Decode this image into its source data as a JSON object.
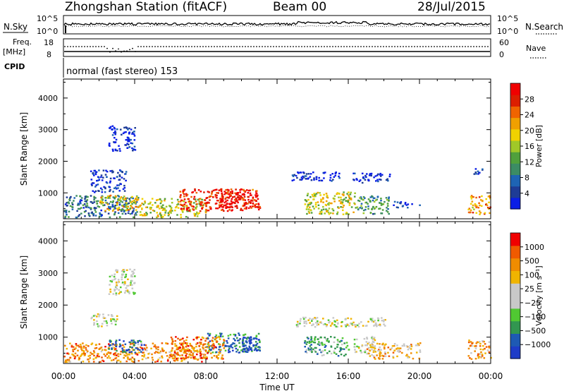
{
  "header": {
    "station": "Zhongshan Station (fitACF)",
    "beam": "Beam 00",
    "date": "28/Jul/2015"
  },
  "top_panels": {
    "nsky_label": "N.Sky",
    "nsearch_label": "N.Search",
    "nsky_ticks": [
      "10^5",
      "10^0"
    ],
    "nsearch_ticks": [
      "10^5",
      "10^0"
    ],
    "freq_label_1": "Freq.",
    "freq_label_2": "[MHz]",
    "freq_ticks": [
      "18",
      "8"
    ],
    "nave_label": "Nave",
    "nave_ticks": [
      "60",
      "0"
    ],
    "cpid_label": "CPID",
    "mode_text": "normal (fast stereo) 153"
  },
  "chart_data": [
    {
      "type": "heatmap",
      "name": "power",
      "ylabel": "Slant Range [km]",
      "yticks": [
        1000,
        2000,
        3000,
        4000
      ],
      "ylim": [
        180,
        4600
      ],
      "xlim": [
        0,
        24
      ],
      "colorbar_label": "Power [dB]",
      "colorbar_ticks": [
        "28",
        "24",
        "20",
        "16",
        "12",
        "8",
        "4"
      ],
      "colorbar_colors": [
        "#0a1ee6",
        "#1e3c96",
        "#1e64b4",
        "#3c8c64",
        "#50a03c",
        "#a0c828",
        "#f0d200",
        "#f0a000",
        "#f06400",
        "#dc1e00",
        "#f00000"
      ],
      "blobs": [
        {
          "t0": 0.0,
          "t1": 4.2,
          "r0": 200,
          "r1": 900,
          "v": 0.25
        },
        {
          "t0": 2.0,
          "t1": 4.2,
          "r0": 400,
          "r1": 900,
          "v": 0.6
        },
        {
          "t0": 4.2,
          "t1": 8.0,
          "r0": 200,
          "r1": 800,
          "v": 0.55
        },
        {
          "t0": 6.5,
          "t1": 11.0,
          "r0": 400,
          "r1": 1100,
          "v": 0.9
        },
        {
          "t0": 8.5,
          "t1": 10.5,
          "r0": 500,
          "r1": 1000,
          "v": 1.0
        },
        {
          "t0": 1.5,
          "t1": 3.5,
          "r0": 1000,
          "r1": 1700,
          "v": 0.1
        },
        {
          "t0": 13.5,
          "t1": 16.5,
          "r0": 300,
          "r1": 1000,
          "v": 0.55
        },
        {
          "t0": 16.5,
          "t1": 18.3,
          "r0": 300,
          "r1": 900,
          "v": 0.35
        },
        {
          "t0": 16.2,
          "t1": 18.3,
          "r0": 1300,
          "r1": 1600,
          "v": 0.05
        },
        {
          "t0": 12.8,
          "t1": 15.5,
          "r0": 1350,
          "r1": 1650,
          "v": 0.05
        },
        {
          "t0": 18.5,
          "t1": 20.0,
          "r0": 500,
          "r1": 700,
          "v": 0.08
        },
        {
          "t0": 22.7,
          "t1": 24.0,
          "r0": 300,
          "r1": 900,
          "v": 0.7
        },
        {
          "t0": 23.0,
          "t1": 23.5,
          "r0": 1500,
          "r1": 1800,
          "v": 0.05
        },
        {
          "t0": 2.5,
          "t1": 4.0,
          "r0": 2300,
          "r1": 3100,
          "v": 0.05
        }
      ]
    },
    {
      "type": "heatmap",
      "name": "velocity",
      "ylabel": "Slant Range [km]",
      "yticks": [
        1000,
        2000,
        3000,
        4000
      ],
      "ylim": [
        180,
        4600
      ],
      "xlim": [
        0,
        24
      ],
      "colorbar_label": "Velocity [m s⁻¹]",
      "colorbar_ticks": [
        "1000",
        "500",
        "100",
        "25",
        "−25",
        "−100",
        "−500",
        "−1000"
      ],
      "colorbar_colors": [
        "#1e3cc8",
        "#1e5ab4",
        "#329650",
        "#50c832",
        "#c8c8c8",
        "#c8c8c8",
        "#f0b400",
        "#f08c00",
        "#f05a00",
        "#f00000"
      ],
      "blobs": [
        {
          "t0": 0.0,
          "t1": 8.0,
          "r0": 200,
          "r1": 800,
          "v": 0.75
        },
        {
          "t0": 2.5,
          "t1": 4.5,
          "r0": 500,
          "r1": 900,
          "v": 0.15
        },
        {
          "t0": 8.0,
          "t1": 11.0,
          "r0": 500,
          "r1": 1100,
          "v": 0.2
        },
        {
          "t0": 10.0,
          "t1": 11.0,
          "r0": 500,
          "r1": 1000,
          "v": 0.05
        },
        {
          "t0": 6.0,
          "t1": 9.0,
          "r0": 300,
          "r1": 1000,
          "v": 0.78
        },
        {
          "t0": 1.5,
          "t1": 3.0,
          "r0": 1300,
          "r1": 1700,
          "v": 0.5
        },
        {
          "t0": 13.5,
          "t1": 16.0,
          "r0": 400,
          "r1": 1000,
          "v": 0.3
        },
        {
          "t0": 16.3,
          "t1": 17.5,
          "r0": 500,
          "r1": 1000,
          "v": 0.5
        },
        {
          "t0": 17.0,
          "t1": 20.0,
          "r0": 300,
          "r1": 800,
          "v": 0.65
        },
        {
          "t0": 13.0,
          "t1": 18.3,
          "r0": 1300,
          "r1": 1600,
          "v": 0.5
        },
        {
          "t0": 22.7,
          "t1": 24.0,
          "r0": 300,
          "r1": 900,
          "v": 0.72
        },
        {
          "t0": 2.5,
          "t1": 4.0,
          "r0": 2300,
          "r1": 3100,
          "v": 0.5
        }
      ]
    }
  ],
  "x_axis": {
    "ticks": [
      "00:00",
      "04:00",
      "08:00",
      "12:00",
      "16:00",
      "20:00",
      "00:00"
    ],
    "label": "Time UT"
  }
}
